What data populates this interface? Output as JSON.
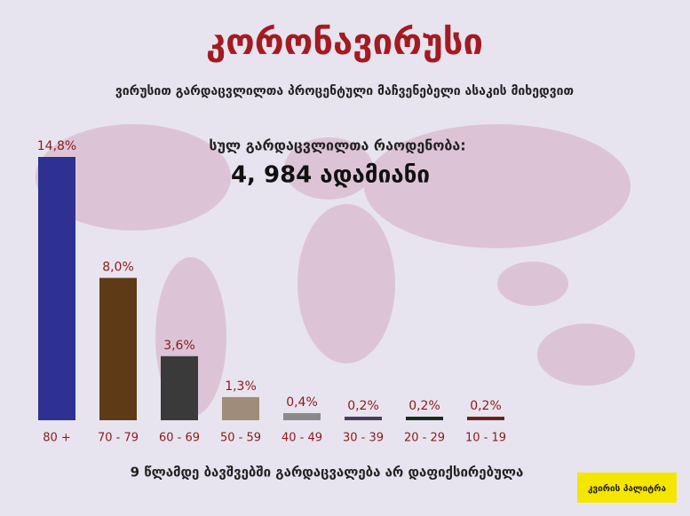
{
  "chart_data": {
    "type": "bar",
    "title": "კორონავირუსი",
    "subtitle": "ვირუსით გარდაცვლილთა პროცენტული მაჩვენებელი ასაკის მიხედვით",
    "total_label": "სულ გარდაცვლილთა რაოდენობა:",
    "total_value": "4, 984 ადამიანი",
    "note": "9 წლამდე ბავშვებში გარდაცვალება არ დაფიქსირებულა",
    "brand": "კვირის პალიტრა",
    "categories": [
      "80 +",
      "70 - 79",
      "60 - 69",
      "50 - 59",
      "40 - 49",
      "30 - 39",
      "20 - 29",
      "10 - 19"
    ],
    "values": [
      14.8,
      8.0,
      3.6,
      1.3,
      0.4,
      0.2,
      0.2,
      0.2
    ],
    "value_labels": [
      "14,8%",
      "8,0%",
      "3,6%",
      "1,3%",
      "0,4%",
      "0,2%",
      "0,2%",
      "0,2%"
    ],
    "colors": [
      "#2e3192",
      "#5e3a16",
      "#3a3a3a",
      "#a08c7a",
      "#8a8a8a",
      "#4e3a5a",
      "#1c2a1c",
      "#6a2218"
    ]
  }
}
